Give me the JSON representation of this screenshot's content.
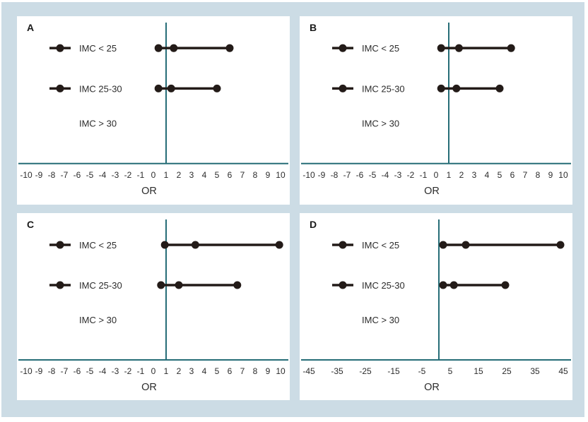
{
  "figure": {
    "description": "Four-panel forest plot figure of odds ratios by BMI (IMC) category",
    "panel_labels": [
      "A",
      "B",
      "C",
      "D"
    ]
  },
  "colors": {
    "canvas_bg": "#ccdce5",
    "panel_bg": "#ffffff",
    "axis_line": "#266d77",
    "marker": "#231b18",
    "text": "#2c2c2c"
  },
  "chart_data": [
    {
      "type": "forest",
      "panel": "A",
      "xlabel": "OR",
      "x_min": -10,
      "x_max": 10,
      "refline_x": 1,
      "ticks": [
        -10,
        -9,
        -8,
        -7,
        -6,
        -5,
        -4,
        -3,
        -2,
        -1,
        0,
        1,
        2,
        3,
        4,
        5,
        6,
        7,
        8,
        9,
        10
      ],
      "rows": [
        {
          "label": "IMC < 25",
          "estimate": 1.6,
          "ci_low": 0.4,
          "ci_high": 6.0
        },
        {
          "label": "IMC 25-30",
          "estimate": 1.4,
          "ci_low": 0.4,
          "ci_high": 5.0
        },
        {
          "label": "IMC > 30",
          "estimate": null,
          "ci_low": null,
          "ci_high": null
        }
      ]
    },
    {
      "type": "forest",
      "panel": "B",
      "xlabel": "OR",
      "x_min": -10,
      "x_max": 10,
      "refline_x": 1,
      "ticks": [
        -10,
        -9,
        -8,
        -7,
        -6,
        -5,
        -4,
        -3,
        -2,
        -1,
        0,
        1,
        2,
        3,
        4,
        5,
        6,
        7,
        8,
        9,
        10
      ],
      "rows": [
        {
          "label": "IMC < 25",
          "estimate": 1.8,
          "ci_low": 0.4,
          "ci_high": 5.9
        },
        {
          "label": "IMC 25-30",
          "estimate": 1.6,
          "ci_low": 0.4,
          "ci_high": 5.0
        },
        {
          "label": "IMC > 30",
          "estimate": null,
          "ci_low": null,
          "ci_high": null
        }
      ]
    },
    {
      "type": "forest",
      "panel": "C",
      "xlabel": "OR",
      "x_min": -10,
      "x_max": 10,
      "refline_x": 1,
      "ticks": [
        -10,
        -9,
        -8,
        -7,
        -6,
        -5,
        -4,
        -3,
        -2,
        -1,
        0,
        1,
        2,
        3,
        4,
        5,
        6,
        7,
        8,
        9,
        10
      ],
      "rows": [
        {
          "label": "IMC < 25",
          "estimate": 3.3,
          "ci_low": 0.9,
          "ci_high": 9.9
        },
        {
          "label": "IMC 25-30",
          "estimate": 2.0,
          "ci_low": 0.6,
          "ci_high": 6.6
        },
        {
          "label": "IMC > 30",
          "estimate": null,
          "ci_low": null,
          "ci_high": null
        }
      ]
    },
    {
      "type": "forest",
      "panel": "D",
      "xlabel": "OR",
      "x_min": -45,
      "x_max": 45,
      "refline_x": 1,
      "ticks": [
        -45,
        -35,
        -25,
        -15,
        -5,
        5,
        15,
        25,
        35,
        45
      ],
      "rows": [
        {
          "label": "IMC < 25",
          "estimate": 10.5,
          "ci_low": 2.5,
          "ci_high": 44.0
        },
        {
          "label": "IMC 25-30",
          "estimate": 6.3,
          "ci_low": 2.5,
          "ci_high": 24.5
        },
        {
          "label": "IMC > 30",
          "estimate": null,
          "ci_low": null,
          "ci_high": null
        }
      ]
    }
  ]
}
